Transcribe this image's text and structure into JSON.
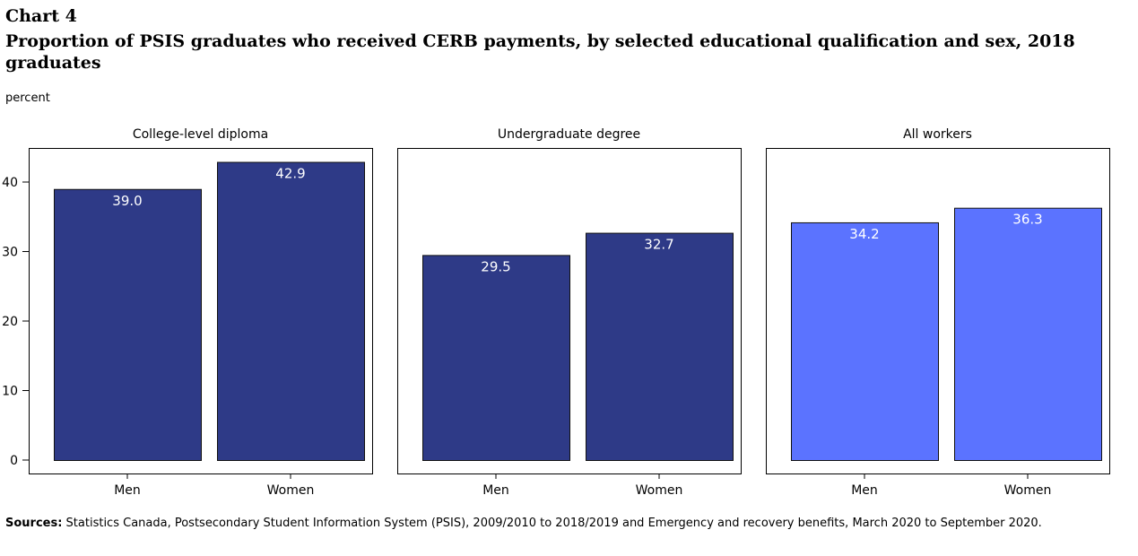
{
  "chart_label": "Chart 4",
  "title": "Proportion of PSIS graduates who received CERB payments, by selected educational qualification and sex, 2018 graduates",
  "y_unit_label": "percent",
  "sources_label": "Sources:",
  "sources_text": " Statistics Canada, Postsecondary Student Information System (PSIS), 2009/2010 to 2018/2019 and Emergency and recovery benefits, March 2020 to September 2020.",
  "colors": {
    "dark_bar": "#2e3a87",
    "light_bar": "#5b73ff",
    "bar_stroke": "#111111",
    "label_text": "#ffffff"
  },
  "chart_data": {
    "type": "bar",
    "ylim": [
      0,
      45
    ],
    "y_ticks": [
      0,
      10,
      20,
      30,
      40
    ],
    "categories": [
      "Men",
      "Women"
    ],
    "panels": [
      {
        "name": "College-level diploma",
        "values": [
          39.0,
          42.9
        ],
        "labels": [
          "39.0",
          "42.9"
        ],
        "color": "dark"
      },
      {
        "name": "Undergraduate degree",
        "values": [
          29.5,
          32.7
        ],
        "labels": [
          "29.5",
          "32.7"
        ],
        "color": "dark"
      },
      {
        "name": "All workers",
        "values": [
          34.2,
          36.3
        ],
        "labels": [
          "34.2",
          "36.3"
        ],
        "color": "light"
      }
    ]
  }
}
